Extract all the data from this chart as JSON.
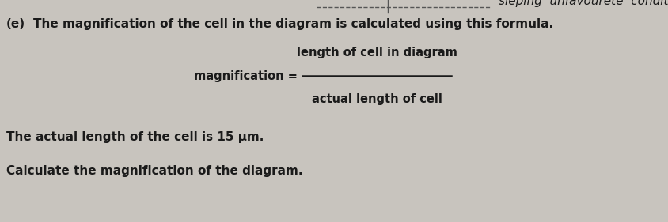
{
  "bg_color": "#c8c4be",
  "text_color": "#1a1a1a",
  "handwritten_color": "#1a1a1a",
  "label_e": "(e)",
  "line1": "The magnification of the cell in the diagram is calculated using this formula.",
  "formula_left": "magnification =",
  "formula_numerator": "length of cell in diagram",
  "formula_denominator": "actual length of cell",
  "line3": "The actual length of the cell is 15 μm.",
  "line4": "Calculate the magnification of the diagram.",
  "font_main": 11,
  "font_formula": 10.5,
  "font_handwritten": 11,
  "dashed_line_color": "#555555",
  "fraction_line_color": "#1a1a1a"
}
